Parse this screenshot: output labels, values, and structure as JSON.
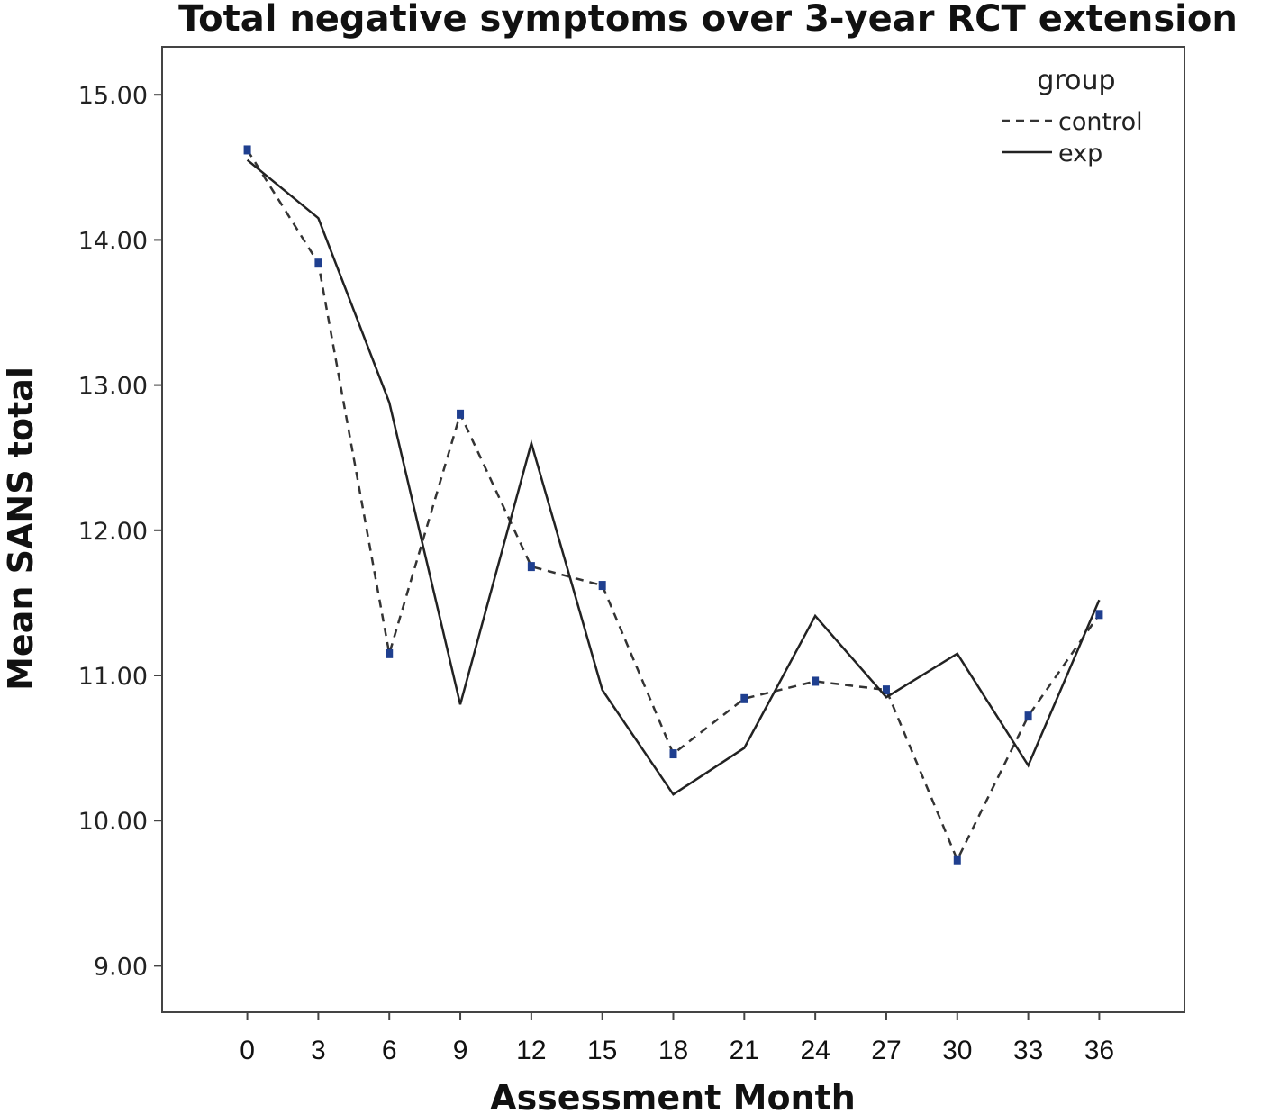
{
  "chart_data": {
    "type": "line",
    "title": "Total negative symptoms over 3-year RCT extension",
    "xlabel": "Assessment Month",
    "ylabel": "Mean SANS total",
    "x": [
      0,
      3,
      6,
      9,
      12,
      15,
      18,
      21,
      24,
      27,
      30,
      33,
      36
    ],
    "x_tick_labels": [
      "0",
      "3",
      "6",
      "9",
      "12",
      "15",
      "18",
      "21",
      "24",
      "27",
      "30",
      "33",
      "36"
    ],
    "y_ticks": [
      9,
      10,
      11,
      12,
      13,
      14,
      15
    ],
    "y_tick_labels": [
      "9.00",
      "10.00",
      "11.00",
      "12.00",
      "13.00",
      "14.00",
      "15.00"
    ],
    "xlim": [
      -3.6,
      39.6
    ],
    "ylim": [
      8.68,
      15.33
    ],
    "grid": false,
    "legend": {
      "title": "group",
      "position": "top-right"
    },
    "series": [
      {
        "name": "control",
        "line_style": "dashed",
        "color": "#333333",
        "marker_color": "#1f3f8f",
        "values": [
          14.62,
          13.84,
          11.15,
          12.8,
          11.75,
          11.62,
          10.46,
          10.84,
          10.96,
          10.9,
          9.73,
          10.72,
          11.42
        ]
      },
      {
        "name": "exp",
        "line_style": "solid",
        "color": "#222222",
        "values": [
          14.55,
          14.15,
          12.88,
          10.8,
          12.6,
          10.9,
          10.18,
          10.5,
          11.41,
          10.85,
          11.15,
          10.38,
          11.52
        ]
      }
    ]
  }
}
